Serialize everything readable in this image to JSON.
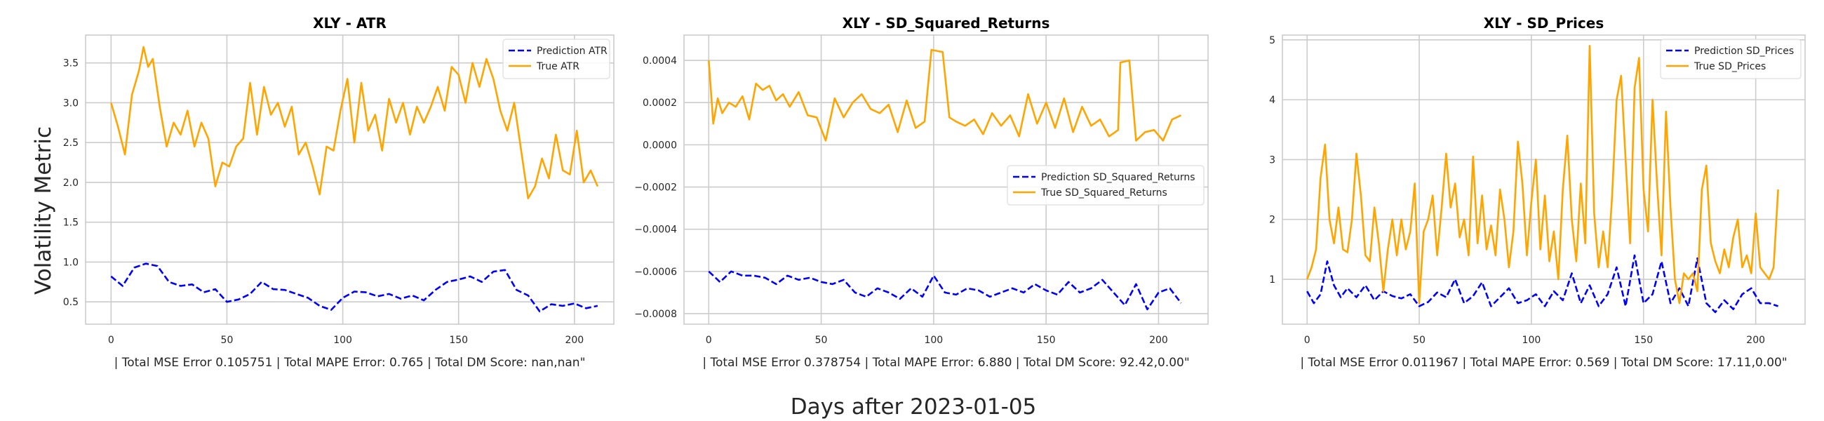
{
  "figure": {
    "supxlabel": "Days after 2023-01-05",
    "supylabel": "Volatility Metric"
  },
  "colors": {
    "prediction": "#0000ff",
    "true": "#ffa500",
    "grid": "#cccccc",
    "frame": "#cccccc"
  },
  "chart_data": [
    {
      "type": "line",
      "title": "XLY - ATR",
      "xlabel": "| Total MSE Error 0.105751 | Total MAPE Error: 0.765 | Total DM Score: nan,nan\"",
      "xlim": [
        -11,
        217
      ],
      "ylim": [
        0.22,
        3.85
      ],
      "xticks": [
        0,
        50,
        100,
        150,
        200
      ],
      "xtick_labels": [
        "0",
        "50",
        "100",
        "150",
        "200"
      ],
      "yticks": [
        0.5,
        1.0,
        1.5,
        2.0,
        2.5,
        3.0,
        3.5
      ],
      "ytick_labels": [
        "0.5",
        "1.0",
        "1.5",
        "2.0",
        "2.5",
        "3.0",
        "3.5"
      ],
      "legend_loc": "upper right",
      "series": [
        {
          "name": "Prediction ATR",
          "style": "dashed",
          "color": "#0000ff",
          "x": [
            0,
            5,
            10,
            15,
            20,
            25,
            30,
            35,
            40,
            45,
            50,
            55,
            60,
            65,
            70,
            75,
            80,
            85,
            90,
            95,
            100,
            105,
            110,
            115,
            120,
            125,
            130,
            135,
            140,
            145,
            150,
            155,
            160,
            165,
            170,
            175,
            180,
            185,
            190,
            195,
            200,
            205,
            210
          ],
          "y": [
            0.82,
            0.7,
            0.93,
            0.98,
            0.95,
            0.75,
            0.7,
            0.72,
            0.62,
            0.66,
            0.5,
            0.53,
            0.6,
            0.75,
            0.66,
            0.65,
            0.6,
            0.55,
            0.45,
            0.4,
            0.55,
            0.63,
            0.62,
            0.57,
            0.6,
            0.54,
            0.58,
            0.52,
            0.65,
            0.75,
            0.78,
            0.82,
            0.75,
            0.88,
            0.9,
            0.65,
            0.58,
            0.38,
            0.47,
            0.45,
            0.48,
            0.42,
            0.45
          ]
        },
        {
          "name": "True ATR",
          "style": "solid",
          "color": "#ffa500",
          "x": [
            0,
            3,
            6,
            9,
            12,
            14,
            16,
            18,
            21,
            24,
            27,
            30,
            33,
            36,
            39,
            42,
            45,
            48,
            51,
            54,
            57,
            60,
            63,
            66,
            69,
            72,
            75,
            78,
            81,
            84,
            87,
            90,
            93,
            96,
            99,
            102,
            105,
            108,
            111,
            114,
            117,
            120,
            123,
            126,
            129,
            132,
            135,
            138,
            141,
            144,
            147,
            150,
            153,
            156,
            159,
            162,
            165,
            168,
            171,
            174,
            177,
            180,
            183,
            186,
            189,
            192,
            195,
            198,
            201,
            204,
            207,
            210
          ],
          "y": [
            3.0,
            2.7,
            2.35,
            3.1,
            3.4,
            3.7,
            3.45,
            3.55,
            2.95,
            2.45,
            2.75,
            2.6,
            2.9,
            2.45,
            2.75,
            2.55,
            1.95,
            2.25,
            2.2,
            2.45,
            2.55,
            3.25,
            2.6,
            3.2,
            2.85,
            3.0,
            2.7,
            2.95,
            2.35,
            2.5,
            2.2,
            1.85,
            2.45,
            2.4,
            2.9,
            3.3,
            2.5,
            3.25,
            2.65,
            2.85,
            2.4,
            3.05,
            2.75,
            3.0,
            2.6,
            2.95,
            2.75,
            2.95,
            3.2,
            2.9,
            3.45,
            3.35,
            3.0,
            3.5,
            3.2,
            3.55,
            3.3,
            2.9,
            2.65,
            3.0,
            2.4,
            1.8,
            1.95,
            2.3,
            2.05,
            2.6,
            2.15,
            2.1,
            2.65,
            2.0,
            2.15,
            1.95
          ]
        }
      ]
    },
    {
      "type": "line",
      "title": "XLY - SD_Squared_Returns",
      "xlabel": "| Total MSE Error 0.378754 | Total MAPE Error: 6.880 | Total DM Score: 92.42,0.00\"",
      "xlim": [
        -11,
        222
      ],
      "ylim": [
        -0.00085,
        0.00052
      ],
      "xticks": [
        0,
        50,
        100,
        150,
        200
      ],
      "xtick_labels": [
        "0",
        "50",
        "100",
        "150",
        "200"
      ],
      "yticks": [
        -0.0008,
        -0.0006,
        -0.0004,
        -0.0002,
        0.0,
        0.0002,
        0.0004
      ],
      "ytick_labels": [
        "−0.0008",
        "−0.0006",
        "−0.0004",
        "−0.0002",
        "0.0000",
        "0.0002",
        "0.0004"
      ],
      "legend_loc": "center right",
      "series": [
        {
          "name": "Prediction SD_Squared_Returns",
          "style": "dashed",
          "color": "#0000ff",
          "x": [
            0,
            5,
            10,
            15,
            20,
            25,
            30,
            35,
            40,
            45,
            50,
            55,
            60,
            65,
            70,
            75,
            80,
            85,
            90,
            95,
            100,
            105,
            110,
            115,
            120,
            125,
            130,
            135,
            140,
            145,
            150,
            155,
            160,
            165,
            170,
            175,
            180,
            185,
            190,
            195,
            200,
            205,
            210
          ],
          "y": [
            -0.0006,
            -0.00065,
            -0.0006,
            -0.00062,
            -0.00062,
            -0.00063,
            -0.00066,
            -0.00062,
            -0.00064,
            -0.00063,
            -0.00065,
            -0.00066,
            -0.00064,
            -0.0007,
            -0.00072,
            -0.00068,
            -0.0007,
            -0.00073,
            -0.00068,
            -0.00072,
            -0.00062,
            -0.0007,
            -0.00071,
            -0.00068,
            -0.00069,
            -0.00072,
            -0.0007,
            -0.00068,
            -0.0007,
            -0.00066,
            -0.00069,
            -0.00071,
            -0.00065,
            -0.0007,
            -0.00068,
            -0.00064,
            -0.0007,
            -0.00076,
            -0.00066,
            -0.00078,
            -0.0007,
            -0.00068,
            -0.00075
          ]
        },
        {
          "name": "True SD_Squared_Returns",
          "style": "solid",
          "color": "#ffa500",
          "x": [
            0,
            2,
            4,
            6,
            9,
            12,
            15,
            18,
            21,
            24,
            27,
            30,
            33,
            36,
            40,
            44,
            48,
            52,
            56,
            60,
            64,
            68,
            72,
            76,
            80,
            84,
            88,
            92,
            96,
            99,
            104,
            107,
            110,
            114,
            118,
            122,
            126,
            130,
            134,
            138,
            142,
            146,
            150,
            154,
            158,
            162,
            166,
            170,
            174,
            178,
            182,
            183,
            187,
            190,
            194,
            198,
            202,
            206,
            210
          ],
          "y": [
            0.0004,
            0.0001,
            0.00022,
            0.00015,
            0.0002,
            0.00018,
            0.00023,
            0.00012,
            0.00029,
            0.00026,
            0.00028,
            0.00021,
            0.00024,
            0.00018,
            0.00025,
            0.00014,
            0.00013,
            2e-05,
            0.00022,
            0.00013,
            0.0002,
            0.00024,
            0.00017,
            0.00015,
            0.00019,
            6e-05,
            0.00021,
            8e-05,
            0.00011,
            0.00045,
            0.00044,
            0.00013,
            0.00011,
            9e-05,
            0.00012,
            5e-05,
            0.00015,
            9e-05,
            0.00014,
            4e-05,
            0.00024,
            0.0001,
            0.0002,
            8e-05,
            0.00022,
            6e-05,
            0.00018,
            9e-05,
            0.00012,
            4e-05,
            7e-05,
            0.00039,
            0.0004,
            2e-05,
            6e-05,
            7e-05,
            2e-05,
            0.00012,
            0.00014
          ]
        }
      ]
    },
    {
      "type": "line",
      "title": "XLY - SD_Prices",
      "xlabel": "| Total MSE Error 0.011967 | Total MAPE Error: 0.569 | Total DM Score: 17.11,0.00\"",
      "xlim": [
        -11,
        222
      ],
      "ylim": [
        0.25,
        5.08
      ],
      "xticks": [
        0,
        50,
        100,
        150,
        200
      ],
      "xtick_labels": [
        "0",
        "50",
        "100",
        "150",
        "200"
      ],
      "yticks": [
        1,
        2,
        3,
        4,
        5
      ],
      "ytick_labels": [
        "1",
        "2",
        "3",
        "4",
        "5"
      ],
      "legend_loc": "upper right",
      "series": [
        {
          "name": "Prediction SD_Prices",
          "style": "dashed",
          "color": "#0000ff",
          "x": [
            0,
            3,
            6,
            9,
            12,
            15,
            18,
            22,
            26,
            30,
            34,
            38,
            42,
            46,
            50,
            54,
            58,
            62,
            66,
            70,
            74,
            78,
            82,
            86,
            90,
            94,
            98,
            102,
            106,
            110,
            114,
            118,
            122,
            126,
            130,
            134,
            138,
            142,
            146,
            150,
            154,
            158,
            162,
            166,
            170,
            174,
            178,
            182,
            186,
            190,
            194,
            198,
            202,
            206,
            210
          ],
          "y": [
            0.8,
            0.6,
            0.75,
            1.3,
            0.9,
            0.7,
            0.85,
            0.7,
            0.9,
            0.65,
            0.8,
            0.72,
            0.68,
            0.75,
            0.55,
            0.62,
            0.78,
            0.7,
            1.0,
            0.6,
            0.72,
            0.95,
            0.55,
            0.7,
            0.85,
            0.6,
            0.65,
            0.75,
            0.55,
            0.8,
            0.65,
            1.1,
            0.6,
            0.9,
            0.55,
            0.75,
            1.2,
            0.55,
            1.4,
            0.6,
            0.75,
            1.3,
            0.6,
            0.85,
            0.55,
            1.35,
            0.6,
            0.45,
            0.65,
            0.5,
            0.75,
            0.85,
            0.6,
            0.6,
            0.55
          ]
        },
        {
          "name": "True SD_Prices",
          "style": "solid",
          "color": "#ffa500",
          "x": [
            0,
            2,
            4,
            6,
            8,
            10,
            12,
            14,
            16,
            18,
            20,
            22,
            24,
            26,
            28,
            30,
            32,
            34,
            36,
            38,
            40,
            42,
            44,
            46,
            48,
            50,
            52,
            54,
            56,
            58,
            60,
            62,
            64,
            66,
            68,
            70,
            72,
            74,
            76,
            78,
            80,
            82,
            84,
            86,
            88,
            90,
            92,
            94,
            96,
            98,
            100,
            102,
            104,
            106,
            108,
            110,
            112,
            114,
            116,
            118,
            120,
            122,
            124,
            126,
            128,
            130,
            132,
            134,
            136,
            138,
            140,
            142,
            144,
            146,
            148,
            150,
            152,
            154,
            156,
            158,
            160,
            162,
            164,
            166,
            168,
            170,
            172,
            174,
            176,
            178,
            180,
            182,
            184,
            186,
            188,
            190,
            192,
            194,
            196,
            198,
            200,
            202,
            204,
            206,
            208,
            210
          ],
          "y": [
            1.0,
            1.2,
            1.5,
            2.7,
            3.25,
            2.0,
            1.6,
            2.2,
            1.5,
            1.45,
            2.0,
            3.1,
            2.4,
            1.4,
            1.3,
            2.2,
            1.6,
            0.8,
            1.5,
            2.0,
            1.4,
            2.0,
            1.5,
            1.8,
            2.6,
            0.6,
            1.8,
            2.0,
            2.4,
            1.4,
            2.2,
            3.1,
            2.2,
            2.6,
            1.7,
            2.0,
            1.4,
            3.05,
            1.6,
            2.4,
            1.5,
            1.9,
            1.4,
            2.5,
            2.0,
            1.2,
            1.8,
            3.3,
            2.6,
            1.4,
            2.3,
            3.0,
            1.5,
            2.4,
            1.3,
            1.8,
            1.0,
            2.5,
            3.4,
            2.0,
            1.3,
            2.6,
            1.6,
            4.9,
            2.1,
            1.2,
            1.8,
            1.2,
            2.4,
            4.0,
            4.4,
            3.0,
            1.6,
            4.2,
            4.7,
            2.5,
            1.8,
            4.0,
            2.6,
            1.4,
            3.8,
            2.2,
            1.0,
            0.6,
            1.1,
            1.0,
            1.1,
            0.8,
            2.5,
            2.9,
            1.6,
            1.3,
            1.1,
            1.5,
            1.2,
            1.7,
            2.0,
            1.2,
            1.4,
            1.1,
            2.1,
            1.2,
            1.1,
            1.0,
            1.2,
            2.5
          ]
        }
      ]
    }
  ]
}
